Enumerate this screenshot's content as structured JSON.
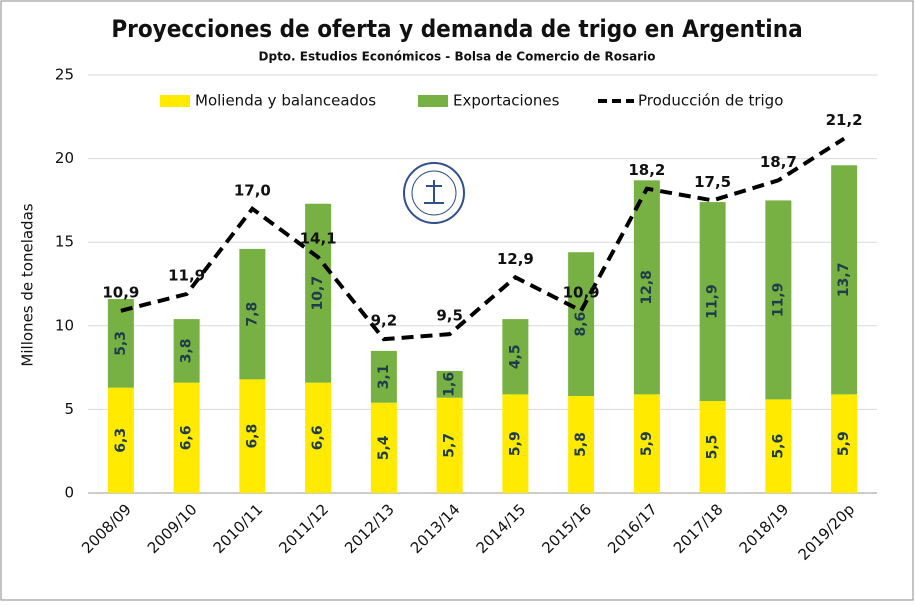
{
  "chart_data": {
    "type": "combo",
    "title": "Proyecciones de oferta y demanda de trigo en Argentina",
    "subtitle": "Dpto. Estudios Económicos - Bolsa de Comercio de Rosario",
    "y_label": "Millones de toneladas",
    "categories": [
      "2008/09",
      "2009/10",
      "2010/11",
      "2011/12",
      "2012/13",
      "2013/14",
      "2014/15",
      "2015/16",
      "2016/17",
      "2017/18",
      "2018/19",
      "2019/20p"
    ],
    "ylim": [
      0,
      25
    ],
    "yticks": [
      0,
      5,
      10,
      15,
      20,
      25
    ],
    "grid": true,
    "stacked": true,
    "legend": "top",
    "series": [
      {
        "name": "Molienda y balanceados",
        "type": "bar",
        "color": "#ffea00",
        "values": [
          6.3,
          6.6,
          6.8,
          6.6,
          5.4,
          5.7,
          5.9,
          5.8,
          5.9,
          5.5,
          5.6,
          5.9
        ],
        "value_labels": [
          "6,3",
          "6,6",
          "6,8",
          "6,6",
          "5,4",
          "5,7",
          "5,9",
          "5,8",
          "5,9",
          "5,5",
          "5,6",
          "5,9"
        ]
      },
      {
        "name": "Exportaciones",
        "type": "bar",
        "color": "#77b043",
        "values": [
          5.3,
          3.8,
          7.8,
          10.7,
          3.1,
          1.6,
          4.5,
          8.6,
          12.8,
          11.9,
          11.9,
          13.7
        ],
        "value_labels": [
          "5,3",
          "3,8",
          "7,8",
          "10,7",
          "3,1",
          "1,6",
          "4,5",
          "8,6",
          "12,8",
          "11,9",
          "11,9",
          "13,7"
        ]
      },
      {
        "name": "Producción de trigo",
        "type": "line",
        "color": "#000000",
        "values": [
          10.9,
          11.9,
          17.0,
          14.1,
          9.2,
          9.5,
          12.9,
          10.9,
          18.2,
          17.5,
          18.7,
          21.2
        ],
        "value_labels": [
          "10,9",
          "11,9",
          "17,0",
          "14,1",
          "9,2",
          "9,5",
          "12,9",
          "10,9",
          "18,2",
          "17,5",
          "18,7",
          "21,2"
        ]
      }
    ]
  }
}
